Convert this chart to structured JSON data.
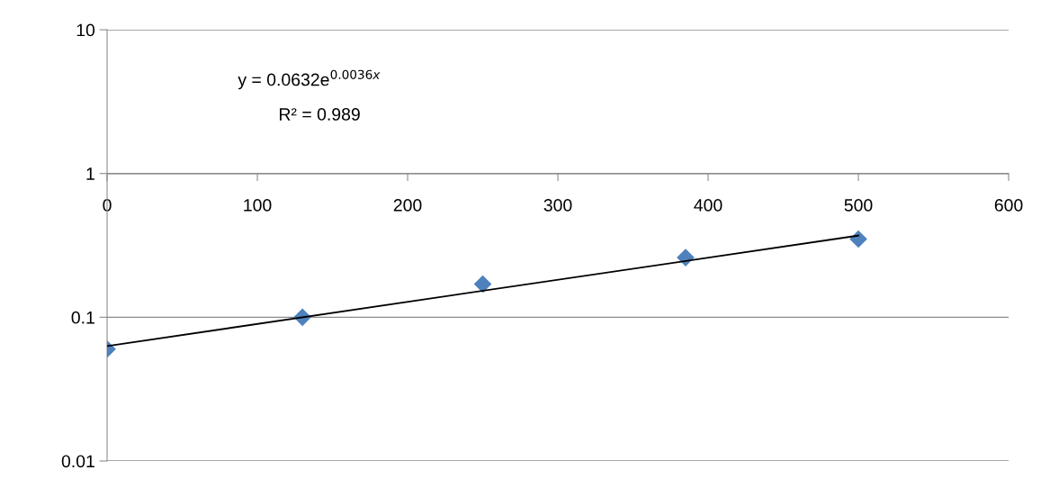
{
  "chart_data": {
    "type": "scatter",
    "log": true,
    "grid": "y",
    "marker": "diamond",
    "xlim": [
      0,
      600
    ],
    "xticks": [
      0,
      100,
      200,
      300,
      400,
      500,
      600
    ],
    "ylim": [
      0.01,
      10
    ],
    "yticks": [
      0.01,
      0.1,
      1,
      10
    ],
    "series": [
      {
        "color": "#4f81bd",
        "x": [
          0,
          130,
          250,
          385,
          500
        ],
        "values": [
          0.06,
          0.1,
          0.17,
          0.26,
          0.35
        ]
      },
      {
        "type": "line",
        "color": "#000000",
        "marker": "none",
        "line_style": "solid",
        "x": [
          0,
          500
        ],
        "values": [
          0.063,
          0.37
        ]
      }
    ],
    "annotations": [
      "y = 0.0632e$^{0.0036x}$",
      "R² = 0.989"
    ]
  }
}
